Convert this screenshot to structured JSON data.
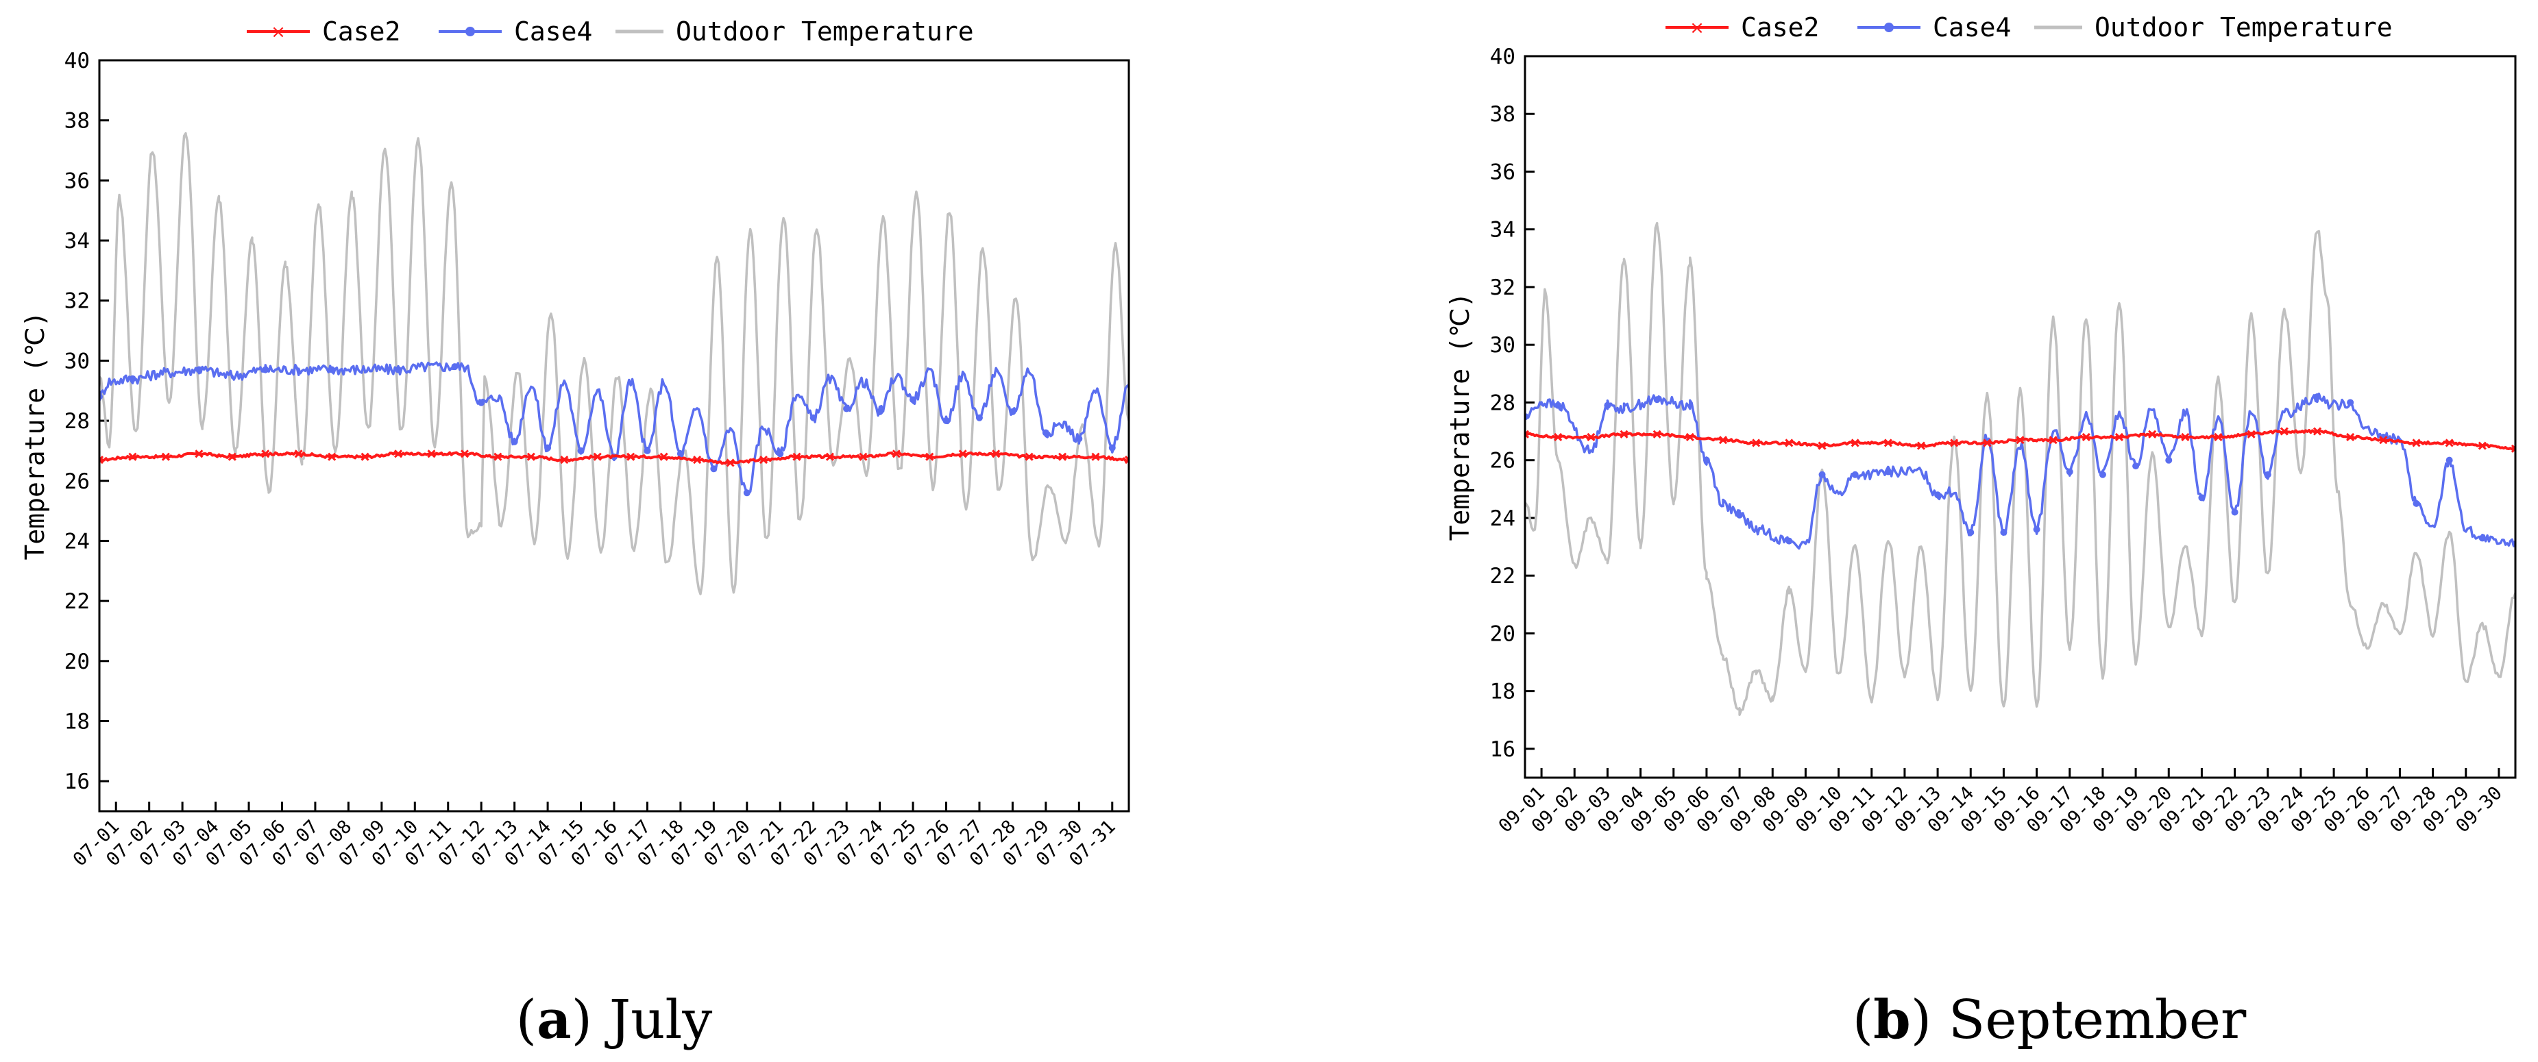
{
  "colors": {
    "case2": "#ff1a1a",
    "case4": "#5a6ef0",
    "outdoor": "#c0c0c0",
    "axis": "#000000"
  },
  "chart_data": [
    {
      "type": "line",
      "panel_letter": "a",
      "caption": "July",
      "ylabel": "Temperature (℃)",
      "ylim": [
        15,
        40
      ],
      "yticks": [
        16,
        18,
        20,
        22,
        24,
        26,
        28,
        30,
        32,
        34,
        36,
        38,
        40
      ],
      "x_day_range": [
        0,
        31
      ],
      "xtick_labels": [
        "07-01",
        "07-02",
        "07-03",
        "07-04",
        "07-05",
        "07-06",
        "07-07",
        "07-08",
        "07-09",
        "07-10",
        "07-11",
        "07-12",
        "07-13",
        "07-14",
        "07-15",
        "07-16",
        "07-17",
        "07-18",
        "07-19",
        "07-20",
        "07-21",
        "07-22",
        "07-23",
        "07-24",
        "07-25",
        "07-26",
        "07-27",
        "07-28",
        "07-29",
        "07-30",
        "07-31"
      ],
      "legend": [
        "Case2",
        "Case4",
        "Outdoor Temperature"
      ],
      "series": [
        {
          "name": "Case2",
          "x": [
            0,
            1,
            2,
            3,
            4,
            5,
            6,
            7,
            8,
            9,
            10,
            11,
            12,
            13,
            14,
            15,
            16,
            17,
            18,
            19,
            20,
            21,
            22,
            23,
            24,
            25,
            26,
            27,
            28,
            29,
            30,
            31
          ],
          "values": [
            26.7,
            26.8,
            26.8,
            26.9,
            26.8,
            26.9,
            26.9,
            26.8,
            26.8,
            26.9,
            26.9,
            26.9,
            26.8,
            26.8,
            26.7,
            26.8,
            26.8,
            26.8,
            26.7,
            26.6,
            26.7,
            26.8,
            26.8,
            26.8,
            26.9,
            26.8,
            26.9,
            26.9,
            26.8,
            26.8,
            26.8,
            26.7
          ]
        },
        {
          "name": "Case4",
          "x": [
            0,
            0.3,
            1,
            2,
            3,
            4,
            5,
            6,
            7,
            8,
            9,
            10,
            10.7,
            11,
            11.5,
            12,
            12.5,
            13,
            13.5,
            14,
            14.5,
            15,
            15.5,
            16,
            16.5,
            17,
            17.5,
            18,
            18.5,
            19,
            19.5,
            20,
            20.5,
            21,
            21.5,
            22,
            22.5,
            23,
            23.5,
            24,
            24.5,
            25,
            25.5,
            26,
            26.5,
            27,
            27.5,
            28,
            28.5,
            29,
            29.5,
            30,
            30.5,
            31
          ],
          "values": [
            28.8,
            29.3,
            29.4,
            29.6,
            29.7,
            29.5,
            29.7,
            29.7,
            29.7,
            29.7,
            29.7,
            29.8,
            29.8,
            29.8,
            28.6,
            28.8,
            27.3,
            29.2,
            27.1,
            29.3,
            27.0,
            29.0,
            26.8,
            29.3,
            27.0,
            29.3,
            26.9,
            28.4,
            26.4,
            27.7,
            25.6,
            27.8,
            26.9,
            28.9,
            28.1,
            29.4,
            28.4,
            29.3,
            28.3,
            29.5,
            28.7,
            29.6,
            28.0,
            29.5,
            28.1,
            29.6,
            28.3,
            29.7,
            27.6,
            27.9,
            27.4,
            29.0,
            27.1,
            29.2
          ]
        },
        {
          "name": "Outdoor Temperature",
          "x": [
            0,
            0.3,
            0.6,
            1.1,
            1.6,
            2.1,
            2.6,
            3.1,
            3.6,
            4.1,
            4.6,
            5.1,
            5.6,
            6.1,
            6.6,
            7.1,
            7.6,
            8.1,
            8.6,
            9.1,
            9.6,
            10.1,
            10.6,
            11.1,
            11.5,
            11.6,
            12.1,
            12.6,
            13.1,
            13.6,
            14.1,
            14.6,
            15.1,
            15.6,
            16.1,
            16.6,
            17.1,
            17.6,
            18.1,
            18.6,
            19.1,
            19.6,
            20.1,
            20.6,
            21.1,
            21.6,
            22.1,
            22.6,
            23.1,
            23.6,
            24.1,
            24.6,
            25.1,
            25.6,
            26.1,
            26.6,
            27.1,
            27.6,
            28.1,
            28.6,
            29.1,
            29.6,
            30.1,
            30.6,
            31
          ],
          "values": [
            29.5,
            27.2,
            35.4,
            27.6,
            37.0,
            28.6,
            37.6,
            27.8,
            35.4,
            27.0,
            34.0,
            25.6,
            33.2,
            26.6,
            35.2,
            27.0,
            35.5,
            27.7,
            37.0,
            27.6,
            37.3,
            27.2,
            36.0,
            24.2,
            24.5,
            29.5,
            24.5,
            29.6,
            24.0,
            31.6,
            23.5,
            30.0,
            23.6,
            29.5,
            23.7,
            29.0,
            23.2,
            27.0,
            22.2,
            33.5,
            22.3,
            34.3,
            24.0,
            34.8,
            24.6,
            34.4,
            26.5,
            30.0,
            26.2,
            34.7,
            26.3,
            35.6,
            25.8,
            35.0,
            25.0,
            33.7,
            25.6,
            32.1,
            23.4,
            25.9,
            24.0,
            27.8,
            23.9,
            33.8,
            28.0
          ]
        }
      ]
    },
    {
      "type": "line",
      "panel_letter": "b",
      "caption": "September",
      "ylabel": "Temperature (℃)",
      "ylim": [
        15,
        40
      ],
      "yticks": [
        16,
        18,
        20,
        22,
        24,
        26,
        28,
        30,
        32,
        34,
        36,
        38,
        40
      ],
      "x_day_range": [
        0,
        30
      ],
      "xtick_labels": [
        "09-01",
        "09-02",
        "09-03",
        "09-04",
        "09-05",
        "09-06",
        "09-07",
        "09-08",
        "09-09",
        "09-10",
        "09-11",
        "09-12",
        "09-13",
        "09-14",
        "09-15",
        "09-16",
        "09-17",
        "09-18",
        "09-19",
        "09-20",
        "09-21",
        "09-22",
        "09-23",
        "09-24",
        "09-25",
        "09-26",
        "09-27",
        "09-28",
        "09-29",
        "09-30"
      ],
      "legend": [
        "Case2",
        "Case4",
        "Outdoor Temperature"
      ],
      "series": [
        {
          "name": "Case2",
          "x": [
            0,
            1,
            2,
            3,
            4,
            5,
            6,
            7,
            8,
            9,
            10,
            11,
            12,
            13,
            14,
            15,
            16,
            17,
            18,
            19,
            20,
            21,
            22,
            23,
            24,
            25,
            26,
            27,
            28,
            29,
            30
          ],
          "values": [
            26.9,
            26.8,
            26.8,
            26.9,
            26.9,
            26.8,
            26.7,
            26.6,
            26.6,
            26.5,
            26.6,
            26.6,
            26.5,
            26.6,
            26.6,
            26.7,
            26.7,
            26.8,
            26.8,
            26.9,
            26.8,
            26.8,
            26.9,
            27.0,
            27.0,
            26.8,
            26.7,
            26.6,
            26.6,
            26.5,
            26.4
          ]
        },
        {
          "name": "Case4",
          "x": [
            0,
            0.5,
            1,
            2,
            2.5,
            3,
            4,
            5,
            5.5,
            6,
            6.5,
            7,
            8,
            8.5,
            9,
            9.5,
            10,
            10.5,
            11,
            12,
            12.5,
            13,
            13.5,
            14,
            14.5,
            15,
            15.5,
            16,
            16.5,
            17,
            17.5,
            18,
            18.5,
            19,
            19.5,
            20,
            20.5,
            21,
            21.5,
            22,
            22.5,
            23,
            24,
            24.5,
            25,
            25.5,
            26,
            26.5,
            27,
            27.5,
            28,
            28.5,
            29,
            29.5,
            30
          ],
          "values": [
            27.5,
            28.0,
            27.9,
            26.3,
            27.9,
            27.8,
            28.1,
            27.9,
            26.0,
            24.5,
            24.1,
            23.6,
            23.2,
            23.0,
            25.5,
            24.8,
            25.5,
            25.5,
            25.6,
            25.6,
            24.8,
            24.9,
            23.5,
            26.8,
            23.5,
            26.5,
            23.6,
            27.0,
            25.6,
            27.5,
            25.5,
            27.6,
            25.8,
            27.8,
            26.0,
            27.7,
            24.7,
            27.5,
            24.2,
            27.7,
            25.5,
            27.6,
            28.2,
            27.9,
            28.0,
            27.0,
            26.8,
            26.7,
            24.5,
            23.6,
            26.0,
            23.6,
            23.3,
            23.1,
            23.1
          ]
        },
        {
          "name": "Outdoor Temperature",
          "x": [
            0,
            0.3,
            0.6,
            1,
            1.5,
            2,
            2.5,
            3,
            3.5,
            4,
            4.5,
            5,
            5.5,
            6,
            6.5,
            7,
            7.5,
            8,
            8.5,
            9,
            9.5,
            10,
            10.5,
            11,
            11.5,
            12,
            12.5,
            13,
            13.5,
            14,
            14.5,
            15,
            15.5,
            16,
            16.5,
            17,
            17.5,
            18,
            18.5,
            19,
            19.5,
            20,
            20.5,
            21,
            21.5,
            22,
            22.5,
            23,
            23.5,
            24,
            24.3,
            24.6,
            25,
            25.5,
            26,
            26.5,
            27,
            27.5,
            28,
            28.5,
            29,
            29.5,
            30
          ],
          "values": [
            24.5,
            23.5,
            31.8,
            26.0,
            22.3,
            24.0,
            22.5,
            33.0,
            23.0,
            34.2,
            24.5,
            32.9,
            22.0,
            19.2,
            17.3,
            18.7,
            17.7,
            21.5,
            18.6,
            25.6,
            18.5,
            23.0,
            17.7,
            23.3,
            18.5,
            23.0,
            17.8,
            26.8,
            18.0,
            28.3,
            17.4,
            28.4,
            17.5,
            30.9,
            19.5,
            31.0,
            18.5,
            31.5,
            19.0,
            26.2,
            20.2,
            23.0,
            20.0,
            28.8,
            21.0,
            31.0,
            22.0,
            31.2,
            25.5,
            34.0,
            31.6,
            25.0,
            21.0,
            19.5,
            21.0,
            20.0,
            22.8,
            20.0,
            23.5,
            18.3,
            20.3,
            18.5,
            21.4
          ]
        }
      ]
    }
  ]
}
